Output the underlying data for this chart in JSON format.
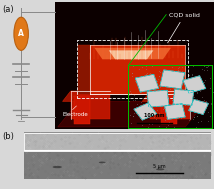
{
  "fig_width": 2.14,
  "fig_height": 1.89,
  "dpi": 100,
  "bg_color": "#d8d8d8",
  "panel_a_label": "(a)",
  "panel_b_label": "(b)",
  "label_color": "#111111",
  "label_fontsize": 6,
  "cqd_label": "CQD solid",
  "electrode_label": "Electrode",
  "scale_100nm": "100 nm",
  "scale_5um": "5 μm",
  "ammeter_color": "#e07818",
  "circuit_wire_color": "#888888",
  "inset_border_color": "#00bb00",
  "main_bg": "#0a0000",
  "platform_color": "#550000",
  "bar_top_color": "#cc2200",
  "bar_front_color": "#aa1a00",
  "electrode_block_color": "#cc1500",
  "hot_color": "#ffffff",
  "inset_bg": "#b8b8b8",
  "panel_b_top_color": "#aaaaaa",
  "panel_b_bot_color": "#888888",
  "panel_b_bg": "#999999"
}
